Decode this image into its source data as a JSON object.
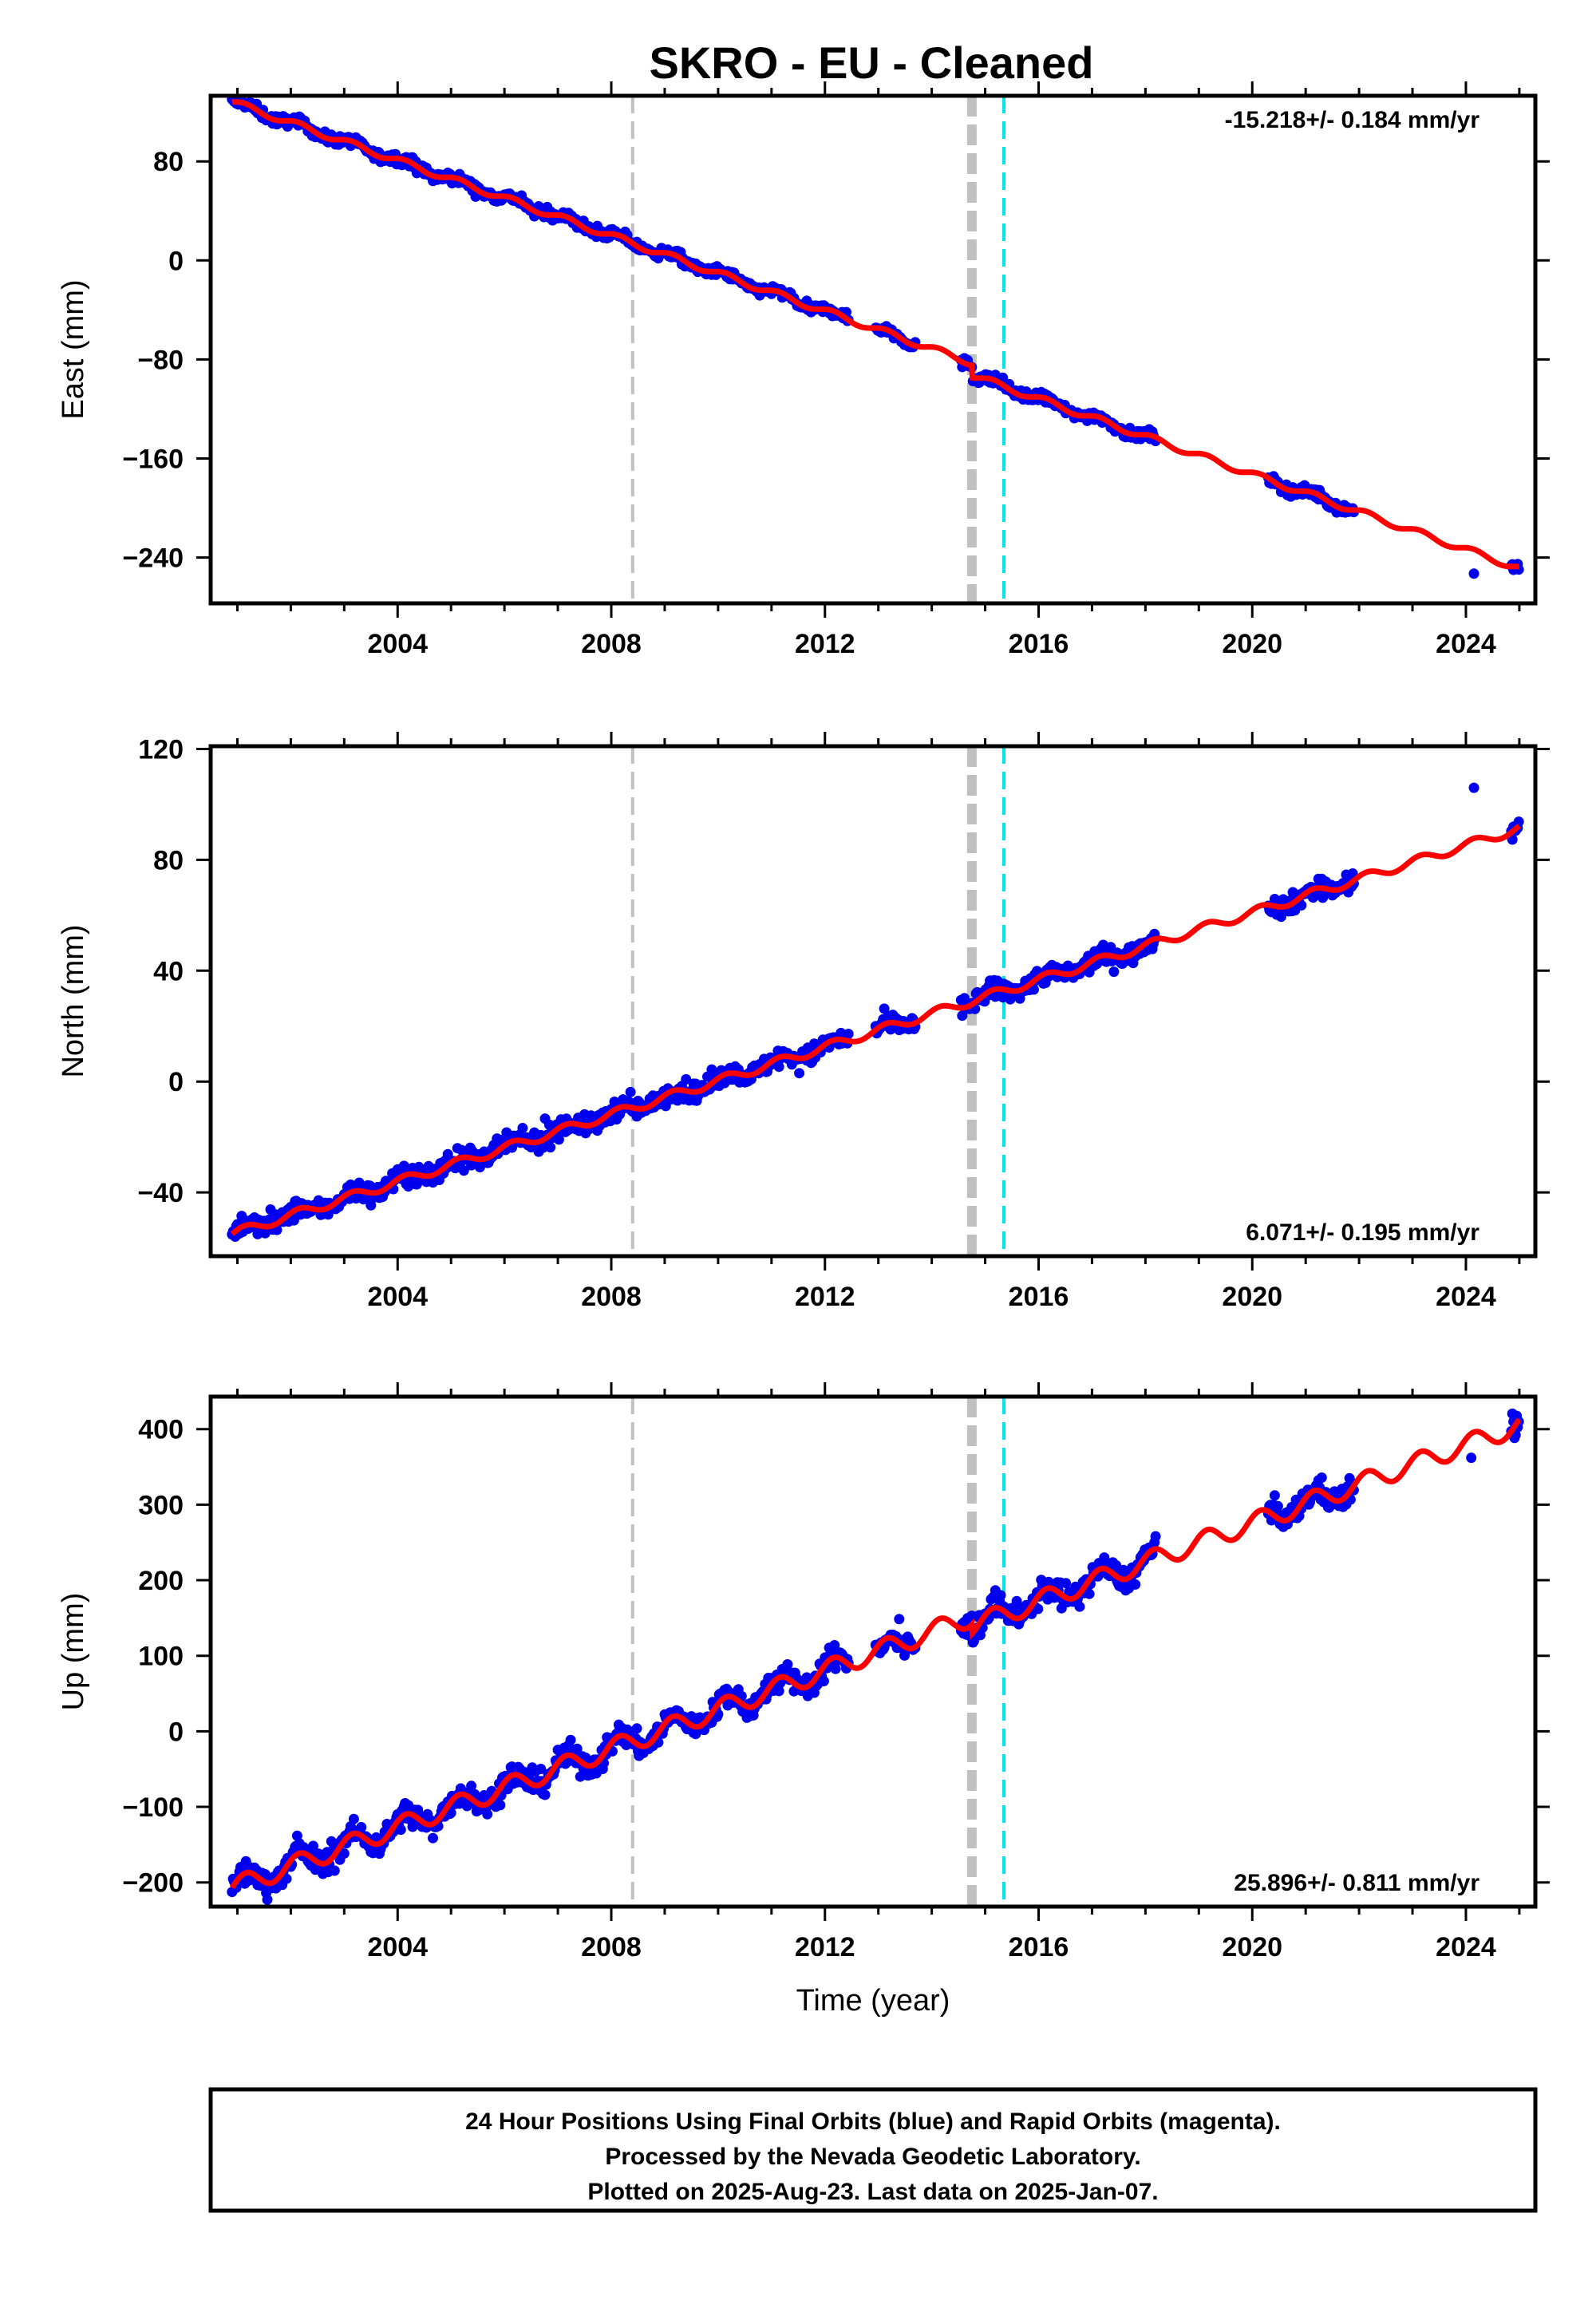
{
  "title": "SKRO  - EU - Cleaned",
  "footer": {
    "line1": "24 Hour Positions Using Final Orbits (blue) and Rapid Orbits (magenta).",
    "line2": "Processed by the Nevada Geodetic Laboratory.",
    "line3": "Plotted on 2025-Aug-23. Last data on 2025-Jan-07."
  },
  "colors": {
    "data": "#0000ee",
    "model": "#ff0000",
    "equipment_change": "#c0c0c0",
    "event": "#00e5ee"
  },
  "chart_data": [
    {
      "type": "scatter",
      "name": "east",
      "ylabel": "East (mm)",
      "xlabel": "",
      "xlim": [
        2000.5,
        2025.3
      ],
      "ylim": [
        -277,
        133
      ],
      "xticks": [
        2004,
        2008,
        2012,
        2016,
        2020,
        2024
      ],
      "yticks": [
        -240,
        -160,
        -80,
        0,
        80
      ],
      "rate": "-15.218+/- 0.184 mm/yr",
      "rate_position": "top-right",
      "vlines": [
        {
          "x": 2008.4,
          "style": "dashed",
          "kind": "equipment_change"
        },
        {
          "x": 2014.75,
          "style": "dashed-thick",
          "kind": "equipment_change"
        },
        {
          "x": 2015.35,
          "style": "dashed",
          "kind": "event"
        }
      ],
      "model": {
        "start": [
          2000.9,
          128
        ],
        "slope": -15.218,
        "seasonal_amp": 2.5,
        "steps": [
          {
            "x": 2014.75,
            "dy": -10
          }
        ],
        "end": 2025.0
      },
      "data_segments": [
        [
          2000.9,
          2012.45
        ],
        [
          2012.95,
          2013.7
        ],
        [
          2014.55,
          2018.2
        ],
        [
          2020.3,
          2021.9
        ],
        [
          2024.85,
          2025.0
        ]
      ],
      "isolated_points": [
        [
          2024.15,
          -253
        ]
      ],
      "noise": 3,
      "spike_amp": 10
    },
    {
      "type": "scatter",
      "name": "north",
      "ylabel": "North (mm)",
      "xlabel": "",
      "xlim": [
        2000.5,
        2025.3
      ],
      "ylim": [
        -63,
        121
      ],
      "xticks": [
        2004,
        2008,
        2012,
        2016,
        2020,
        2024
      ],
      "yticks": [
        -40,
        0,
        40,
        80,
        120
      ],
      "rate": "6.071+/- 0.195 mm/yr",
      "rate_position": "bottom-right",
      "vlines": [
        {
          "x": 2008.4,
          "style": "dashed",
          "kind": "equipment_change"
        },
        {
          "x": 2014.75,
          "style": "dashed-thick",
          "kind": "equipment_change"
        },
        {
          "x": 2015.35,
          "style": "dashed",
          "kind": "event"
        }
      ],
      "model": {
        "start": [
          2000.9,
          -55
        ],
        "slope": 6.071,
        "seasonal_amp": 1.6,
        "steps": [],
        "end": 2025.0
      },
      "data_segments": [
        [
          2000.9,
          2012.45
        ],
        [
          2012.95,
          2013.7
        ],
        [
          2014.55,
          2018.2
        ],
        [
          2020.3,
          2021.9
        ],
        [
          2024.85,
          2025.0
        ]
      ],
      "isolated_points": [
        [
          2024.15,
          106
        ]
      ],
      "noise": 2.5,
      "spike_amp": 9
    },
    {
      "type": "scatter",
      "name": "up",
      "ylabel": "Up (mm)",
      "xlabel": "Time (year)",
      "xlim": [
        2000.5,
        2025.3
      ],
      "ylim": [
        -232,
        443
      ],
      "xticks": [
        2004,
        2008,
        2012,
        2016,
        2020,
        2024
      ],
      "yticks": [
        -200,
        -100,
        0,
        100,
        200,
        300,
        400
      ],
      "rate": "25.896+/- 0.811 mm/yr",
      "rate_position": "bottom-right",
      "vlines": [
        {
          "x": 2008.4,
          "style": "dashed",
          "kind": "equipment_change"
        },
        {
          "x": 2014.75,
          "style": "dashed-thick",
          "kind": "equipment_change"
        },
        {
          "x": 2015.35,
          "style": "dashed",
          "kind": "event"
        }
      ],
      "model": {
        "start": [
          2000.9,
          -207
        ],
        "slope": 25.896,
        "seasonal_amp": 13,
        "steps": [
          {
            "x": 2014.75,
            "dy": -12
          }
        ],
        "end": 2025.0
      },
      "data_segments": [
        [
          2000.9,
          2012.45
        ],
        [
          2012.95,
          2013.7
        ],
        [
          2014.55,
          2018.2
        ],
        [
          2020.3,
          2021.9
        ],
        [
          2024.85,
          2025.0
        ]
      ],
      "isolated_points": [
        [
          2024.1,
          362
        ]
      ],
      "noise": 12,
      "spike_amp": 35
    }
  ]
}
